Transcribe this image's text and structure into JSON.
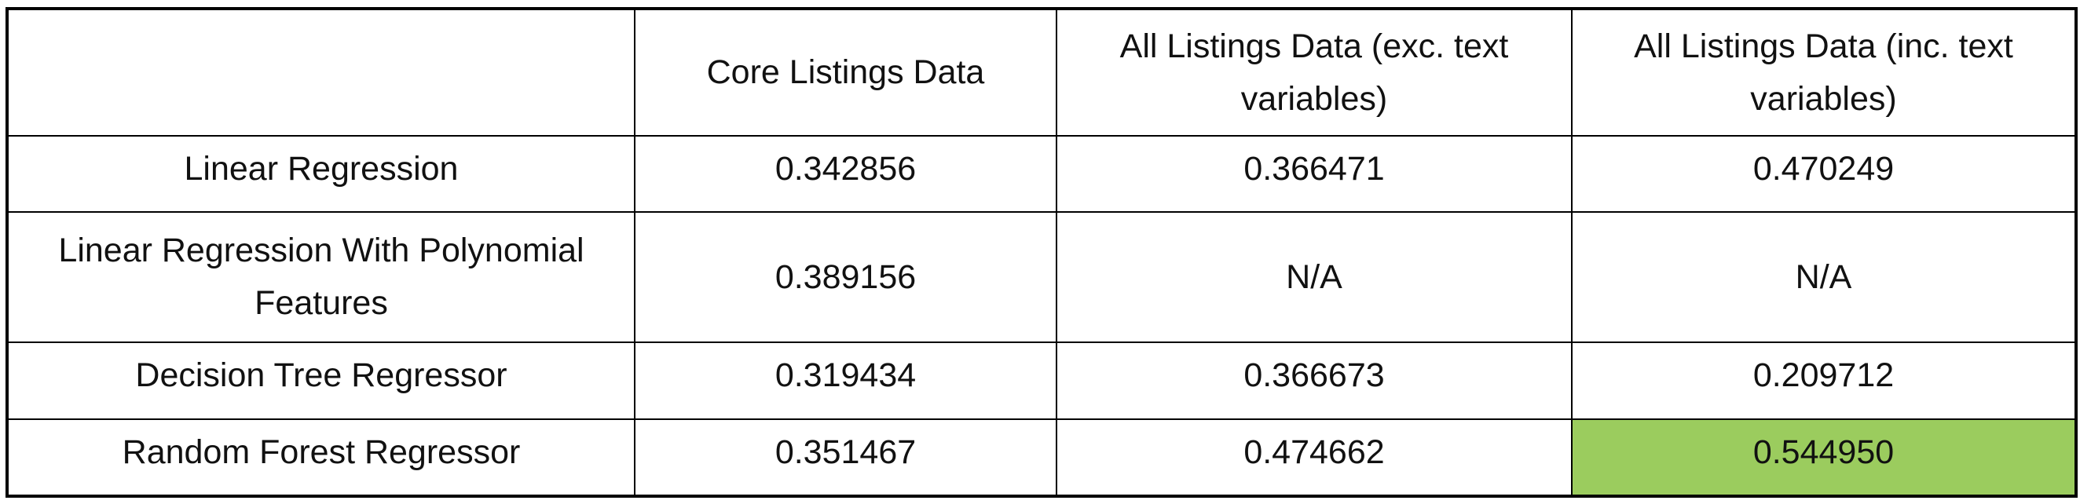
{
  "table": {
    "headers": [
      "",
      "Core Listings Data",
      "All Listings Data (exc. text variables)",
      "All Listings Data (inc. text variables)"
    ],
    "rows": [
      {
        "model": "Linear Regression",
        "values": [
          "0.342856",
          "0.366471",
          "0.470249"
        ]
      },
      {
        "model": "Linear Regression With Polynomial Features",
        "values": [
          "0.389156",
          "N/A",
          "N/A"
        ]
      },
      {
        "model": "Decision Tree Regressor",
        "values": [
          "0.319434",
          "0.366673",
          "0.209712"
        ]
      },
      {
        "model": "Random Forest Regressor",
        "values": [
          "0.351467",
          "0.474662",
          "0.544950"
        ]
      }
    ],
    "highlight_color": "#9bcc5e",
    "border_color": "#000000"
  }
}
